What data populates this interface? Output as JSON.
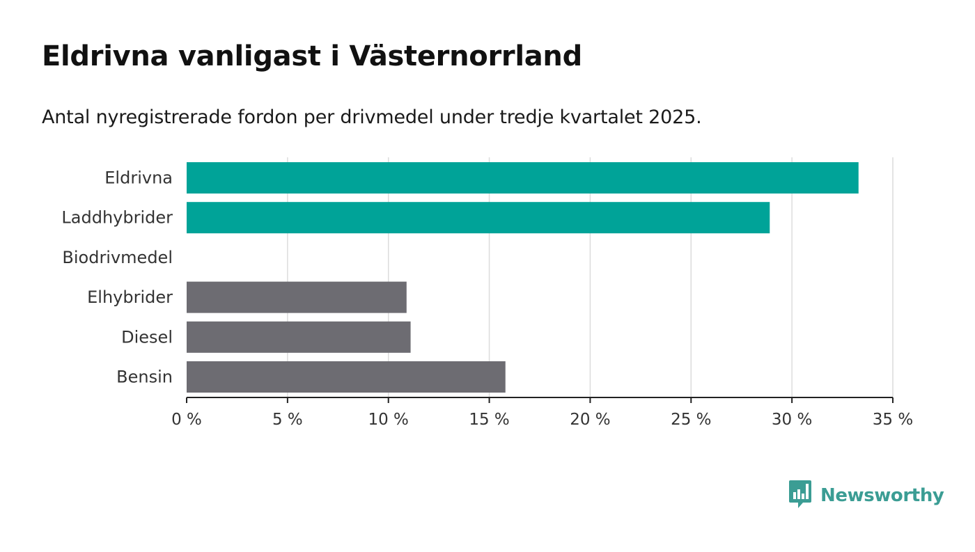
{
  "header": {
    "title": "Eldrivna vanligast i Västernorrland",
    "subtitle": "Antal nyregistrerade fordon per drivmedel under tredje kvartalet 2025."
  },
  "brand": {
    "name": "Newsworthy",
    "icon": "newsworthy-logo-icon",
    "color": "#3b9d94"
  },
  "chart_data": {
    "type": "bar",
    "orientation": "horizontal",
    "title": "Eldrivna vanligast i Västernorrland",
    "subtitle": "Antal nyregistrerade fordon per drivmedel under tredje kvartalet 2025.",
    "xlabel": "",
    "ylabel": "",
    "unit": "%",
    "xlim": [
      0,
      35
    ],
    "xticks": [
      0,
      5,
      10,
      15,
      20,
      25,
      30,
      35
    ],
    "xtick_labels": [
      "0 %",
      "5 %",
      "10 %",
      "15 %",
      "20 %",
      "25 %",
      "30 %",
      "35 %"
    ],
    "grid": true,
    "categories": [
      "Eldrivna",
      "Laddhybrider",
      "Biodrivmedel",
      "Elhybrider",
      "Diesel",
      "Bensin"
    ],
    "values": [
      33.3,
      28.9,
      0,
      10.9,
      11.1,
      15.8
    ],
    "colors": [
      "#00a398",
      "#00a398",
      "#00a398",
      "#6d6c72",
      "#6d6c72",
      "#6d6c72"
    ]
  }
}
